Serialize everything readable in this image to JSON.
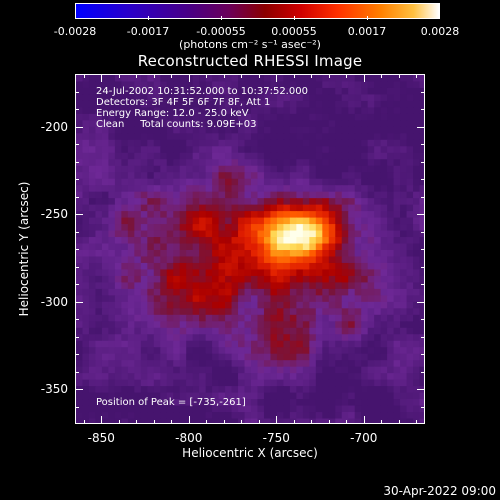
{
  "colorbar": {
    "ticks": [
      "-0.0028",
      "-0.0017",
      "-0.00055",
      "0.00055",
      "0.0017",
      "0.0028"
    ],
    "units": "(photons cm⁻² s⁻¹ asec⁻²)",
    "colors": [
      "#0000ff",
      "#4b0082",
      "#8b0000",
      "#ff2000",
      "#ff9000",
      "#ffffff"
    ]
  },
  "title": "Reconstructed RHESSI Image",
  "info_lines": {
    "time": "24-Jul-2002 10:31:52.000 to 10:37:52.000",
    "detectors": "Detectors: 3F 4F 5F 6F 7F 8F, Att 1",
    "energy": "Energy Range: 12.0 - 25.0 keV",
    "clean": "Clean     Total counts: 9.09E+03"
  },
  "peak_label": "Position of Peak = [-735,-261]",
  "x_axis": {
    "title": "Heliocentric X (arcsec)",
    "ticks": [
      "-850",
      "-800",
      "-750",
      "-700"
    ],
    "tick_values": [
      -850,
      -800,
      -750,
      -700
    ],
    "range": [
      -865,
      -665
    ]
  },
  "y_axis": {
    "title": "Heliocentric Y (arcsec)",
    "ticks": [
      "-200",
      "-250",
      "-300",
      "-350"
    ],
    "tick_values": [
      -200,
      -250,
      -300,
      -350
    ],
    "range": [
      -370,
      -170
    ]
  },
  "timestamp": "30-Apr-2022 09:00",
  "image": {
    "peak_x": -735,
    "peak_y": -261
  }
}
